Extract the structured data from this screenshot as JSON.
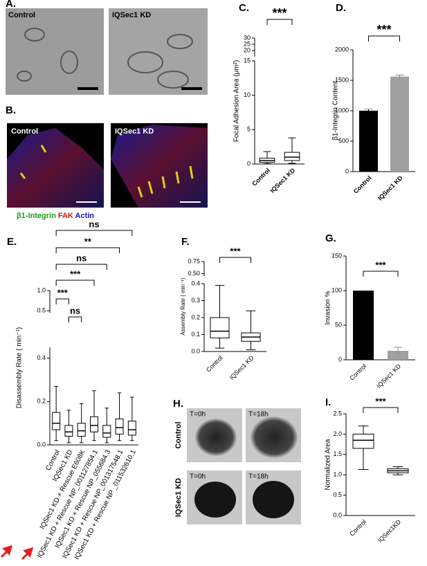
{
  "images": {
    "A": {
      "panel": "A.",
      "labels": [
        "Control",
        "IQSec1 KD"
      ]
    },
    "B": {
      "panel": "B.",
      "labels": [
        "Control",
        "IQSec1 KD"
      ],
      "legend": [
        "β1-Integrin",
        "FAK",
        "Actin"
      ]
    },
    "H": {
      "panel": "H.",
      "rows": [
        "Control",
        "IQSec1 KD"
      ],
      "times": [
        "T=0h",
        "T=18h",
        "T=0h",
        "T=18h"
      ]
    }
  },
  "chart_data": [
    {
      "type": "box",
      "panel": "C.",
      "ylabel": "Focal Adhesion Area (μm²)",
      "categories": [
        "Control",
        "IQSec1 KD"
      ],
      "ysegments": [
        {
          "ylim": [
            0,
            15
          ],
          "yticks": [
            0,
            5,
            10,
            15
          ]
        },
        {
          "ylim": [
            15,
            30
          ],
          "yticks": [
            20,
            25,
            30
          ]
        }
      ],
      "boxes": [
        {
          "min": 0.05,
          "q1": 0.25,
          "median": 0.5,
          "q3": 0.85,
          "max": 1.8
        },
        {
          "min": 0.1,
          "q1": 0.5,
          "median": 1.0,
          "q3": 1.7,
          "max": 3.8
        }
      ],
      "significance": [
        {
          "from": 0,
          "to": 1,
          "label": "***"
        }
      ]
    },
    {
      "type": "bar",
      "panel": "D.",
      "ylabel": "β1-Integrin Content",
      "categories": [
        "Control",
        "IQSec1 KD"
      ],
      "ylim": [
        0,
        2000
      ],
      "yticks": [
        0,
        500,
        1000,
        1500,
        2000
      ],
      "values": [
        1000,
        1560
      ],
      "errors": [
        25,
        25
      ],
      "colors": [
        "#000000",
        "#a0a0a0"
      ],
      "significance": [
        {
          "from": 0,
          "to": 1,
          "label": "***"
        }
      ]
    },
    {
      "type": "box",
      "panel": "E.",
      "ylabel": "Disassembly Rate ( min⁻¹)",
      "categories": [
        "Control",
        "IQSec1 KD",
        "IQSec1 KD + Rescue E608K",
        "IQSec1 KD + Rescue NP_001127854.1",
        "IQSec1 KD + Rescue NP_055684.3",
        "IQSec1 KD + Rescue NP_001317548.1",
        "IQSec1 KD + Rescue NP _011532610.1"
      ],
      "ysegments": [
        {
          "ylim": [
            0,
            0.45
          ],
          "yticks": [
            {
              "value": 0,
              "label": "0.0"
            },
            0.2,
            0.4
          ]
        },
        {
          "ylim": [
            0.45,
            1.0
          ],
          "yticks": [
            0.5,
            {
              "value": 1.0,
              "label": "1.0"
            }
          ]
        }
      ],
      "boxes": [
        {
          "min": 0.02,
          "q1": 0.07,
          "median": 0.1,
          "q3": 0.15,
          "max": 0.27
        },
        {
          "min": 0.01,
          "q1": 0.04,
          "median": 0.06,
          "q3": 0.09,
          "max": 0.16
        },
        {
          "min": 0.01,
          "q1": 0.04,
          "median": 0.065,
          "q3": 0.1,
          "max": 0.19
        },
        {
          "min": 0.02,
          "q1": 0.06,
          "median": 0.09,
          "q3": 0.13,
          "max": 0.25
        },
        {
          "min": 0.01,
          "q1": 0.035,
          "median": 0.055,
          "q3": 0.09,
          "max": 0.17
        },
        {
          "min": 0.02,
          "q1": 0.05,
          "median": 0.08,
          "q3": 0.12,
          "max": 0.24
        },
        {
          "min": 0.02,
          "q1": 0.045,
          "median": 0.07,
          "q3": 0.11,
          "max": 0.22
        }
      ],
      "significance": [
        {
          "from": 1,
          "to": 2,
          "label": "ns"
        },
        {
          "from": 0,
          "to": 1,
          "label": "***"
        },
        {
          "from": 0,
          "to": 3,
          "label": "***"
        },
        {
          "from": 0,
          "to": 4,
          "label": "ns"
        },
        {
          "from": 0,
          "to": 5,
          "label": "**"
        },
        {
          "from": 0,
          "to": 6,
          "label": "ns"
        }
      ]
    },
    {
      "type": "box",
      "panel": "F.",
      "ylabel": "Assembly Rate ( min⁻¹)",
      "categories": [
        "Control",
        "IQSec1 KD"
      ],
      "ysegments": [
        {
          "ylim": [
            0,
            0.4
          ],
          "yticks": [
            {
              "value": 0,
              "label": "0.0"
            },
            0.1,
            0.2,
            0.3,
            0.4
          ]
        },
        {
          "ylim": [
            0.45,
            0.75
          ],
          "yticks": [
            {
              "value": 0.5,
              "label": "0.50"
            },
            0.75
          ]
        }
      ],
      "boxes": [
        {
          "min": 0.02,
          "q1": 0.08,
          "median": 0.12,
          "q3": 0.2,
          "max": 0.39
        },
        {
          "min": 0.01,
          "q1": 0.06,
          "median": 0.085,
          "q3": 0.11,
          "max": 0.24
        }
      ],
      "significance": [
        {
          "from": 0,
          "to": 1,
          "label": "***"
        }
      ]
    },
    {
      "type": "bar",
      "panel": "G.",
      "ylabel": "Invasion %",
      "categories": [
        "Control",
        "IQSec1 KD"
      ],
      "ylim": [
        0,
        150
      ],
      "yticks": [
        0,
        50,
        100,
        150
      ],
      "values": [
        100,
        13
      ],
      "errors": [
        0,
        5
      ],
      "colors": [
        "#000000",
        "#a0a0a0"
      ],
      "significance": [
        {
          "from": 0,
          "to": 1,
          "label": "***"
        }
      ]
    },
    {
      "type": "box",
      "panel": "I.",
      "ylabel": "Normalized Area",
      "categories": [
        "Control",
        "IQSec1KD"
      ],
      "ylim": [
        0,
        2.5
      ],
      "yticks": [
        {
          "value": 0,
          "label": "0.0"
        },
        0.5,
        {
          "value": 1,
          "label": "1.0"
        },
        1.5,
        {
          "value": 2,
          "label": "2.0"
        },
        2.5
      ],
      "boxes": [
        {
          "min": 1.13,
          "q1": 1.65,
          "median": 1.85,
          "q3": 2.0,
          "max": 2.2
        },
        {
          "min": 1.0,
          "q1": 1.05,
          "median": 1.1,
          "q3": 1.15,
          "max": 1.2
        }
      ],
      "significance": [
        {
          "from": 0,
          "to": 1,
          "label": "***"
        }
      ]
    }
  ]
}
